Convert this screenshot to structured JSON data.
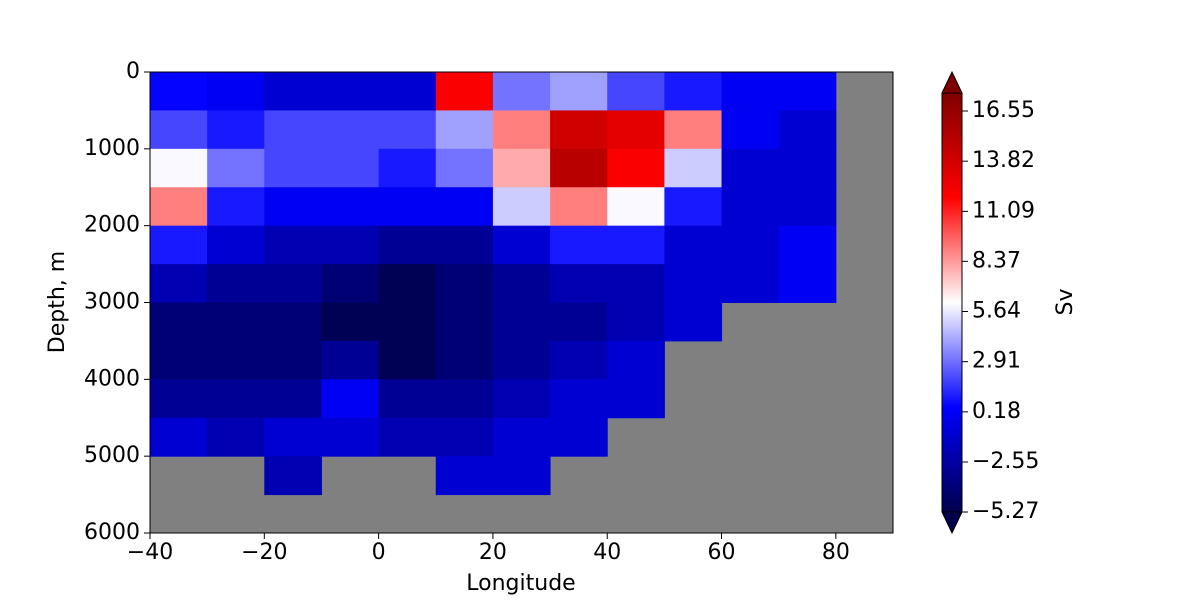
{
  "chart_data": {
    "type": "contour",
    "x_label": "Longitude",
    "y_label": "Depth, m",
    "x": [
      -35,
      -25,
      -15,
      -5,
      5,
      15,
      25,
      35,
      45,
      55,
      65,
      75,
      85
    ],
    "y": [
      250,
      750,
      1250,
      1750,
      2250,
      2750,
      3250,
      3750,
      4250,
      4750,
      5250,
      5750
    ],
    "z": [
      [
        0.5,
        0,
        -1,
        -1,
        -1,
        12,
        3,
        4,
        2,
        1,
        0,
        0,
        null
      ],
      [
        2,
        1,
        2,
        2,
        2,
        4,
        9,
        14,
        13,
        9,
        0,
        -1,
        null
      ],
      [
        6,
        3,
        2,
        2,
        1,
        3,
        8,
        15,
        12,
        5,
        -1,
        -1,
        null
      ],
      [
        9,
        1,
        0,
        0,
        0,
        0,
        5,
        9,
        6,
        1,
        -1,
        -1,
        null
      ],
      [
        1,
        -1,
        -2,
        -2,
        -3,
        -3,
        -1,
        1,
        1,
        -1,
        -1,
        0,
        null
      ],
      [
        -2,
        -3,
        -3,
        -4,
        -5,
        -4,
        -3,
        -2,
        -2,
        -1,
        -1,
        0,
        null
      ],
      [
        -4,
        -4,
        -4,
        -5,
        -5,
        -4,
        -3,
        -3,
        -2,
        -1,
        null,
        null,
        null
      ],
      [
        -4,
        -4,
        -4,
        -3,
        -5,
        -4,
        -3,
        -2,
        -1,
        null,
        null,
        null,
        null
      ],
      [
        -3,
        -3,
        -3,
        0,
        -3,
        -3,
        -2,
        -1,
        -1,
        null,
        null,
        null,
        null
      ],
      [
        -1,
        -2,
        -1,
        -1,
        -2,
        -2,
        -1,
        -1,
        null,
        null,
        null,
        null,
        null
      ],
      [
        null,
        null,
        -2,
        null,
        null,
        -1,
        -1,
        null,
        null,
        null,
        null,
        null,
        null
      ],
      [
        null,
        null,
        null,
        null,
        null,
        null,
        null,
        null,
        null,
        null,
        null,
        null,
        null
      ]
    ],
    "xlim": [
      -40,
      90
    ],
    "ylim": [
      6000,
      0
    ],
    "xticks": [
      {
        "value": -40,
        "label": "−40"
      },
      {
        "value": -20,
        "label": "−20"
      },
      0,
      20,
      40,
      60,
      80
    ],
    "yticks": [
      0,
      1000,
      2000,
      3000,
      4000,
      5000,
      6000
    ],
    "colormap": "seismic",
    "land_color": "#808080",
    "colorbar": {
      "label": "Sv",
      "lim": [
        -5.27,
        17.53
      ],
      "ticks": [
        {
          "value": -5.27,
          "label": "−5.27"
        },
        {
          "value": -2.55,
          "label": "−2.55"
        },
        0.18,
        2.91,
        5.64,
        8.37,
        11.09,
        13.82,
        16.55
      ]
    }
  }
}
